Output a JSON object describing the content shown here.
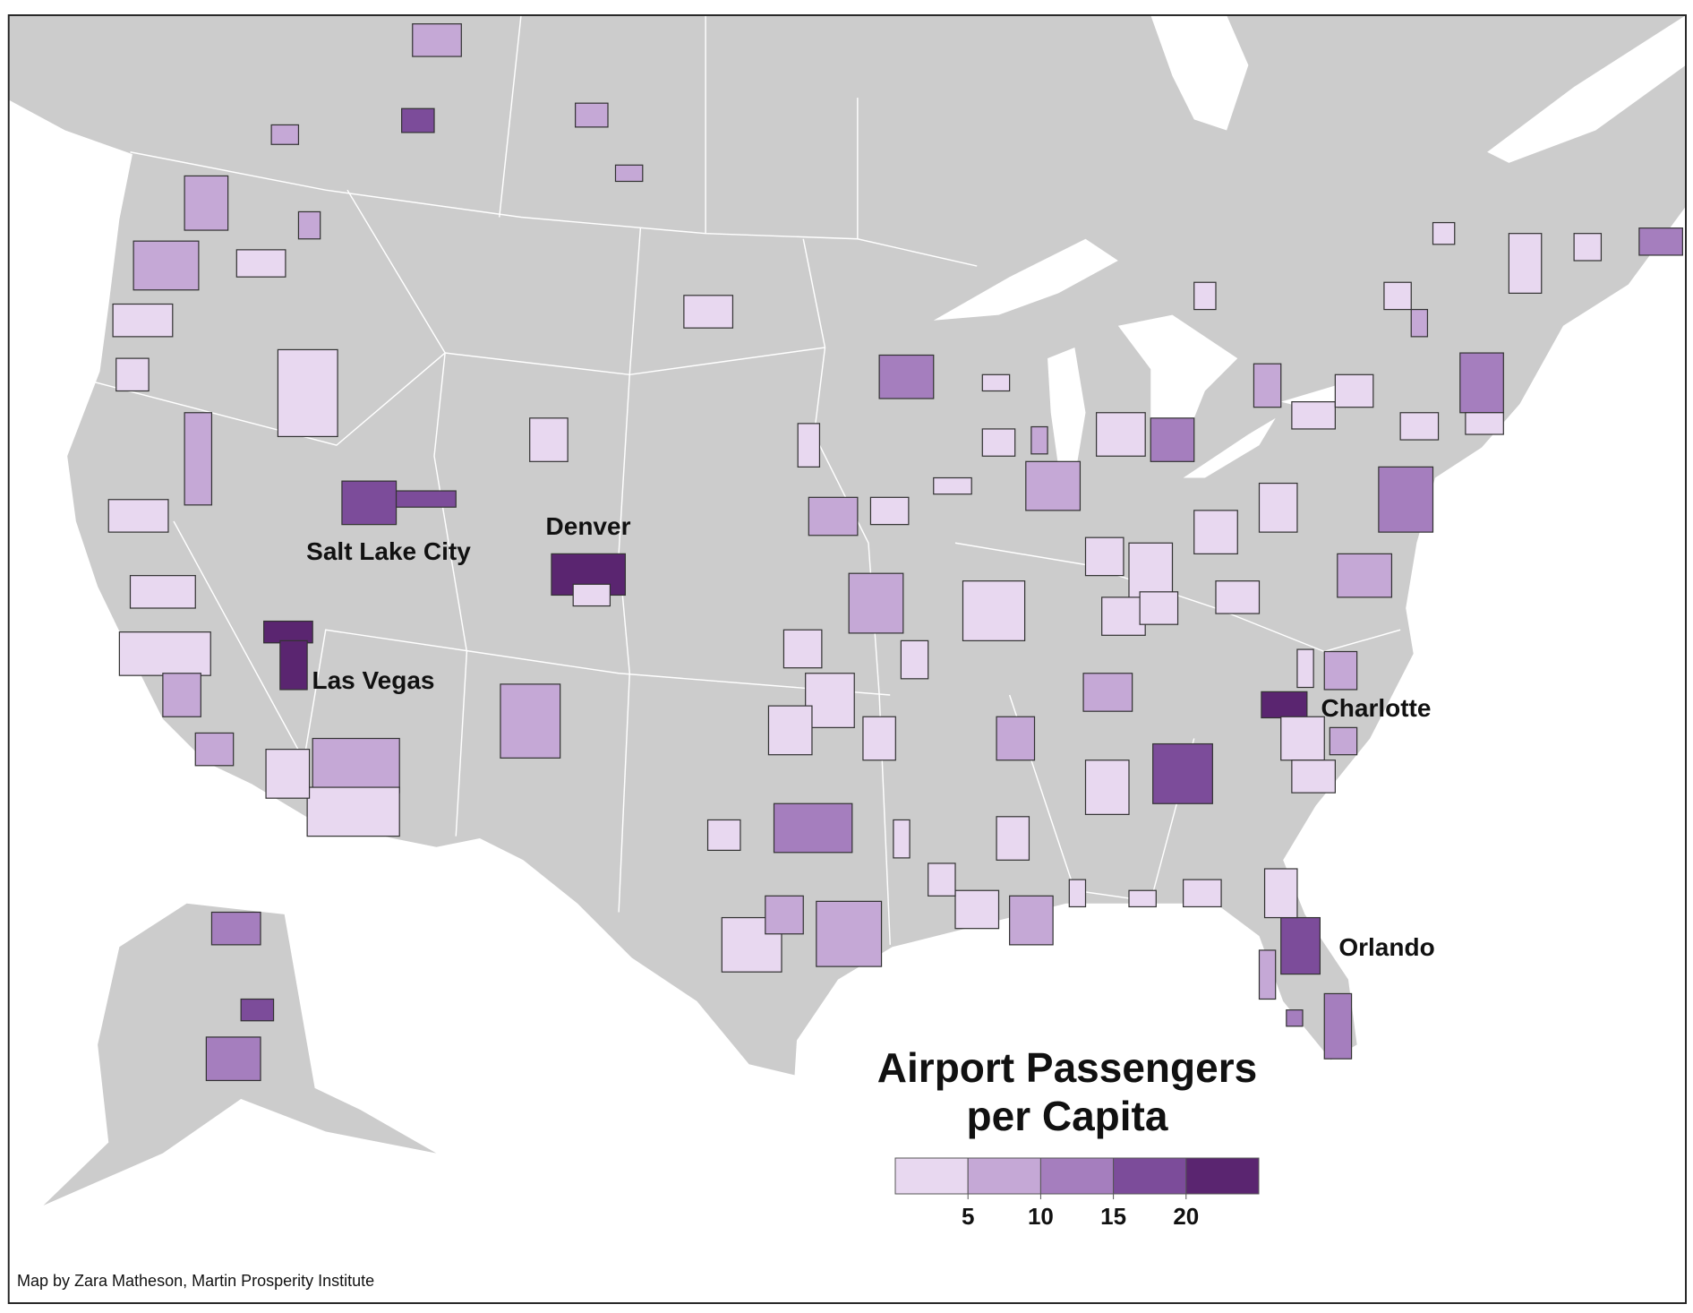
{
  "map": {
    "title_lines": [
      "Airport Passengers",
      "per Capita"
    ],
    "city_labels": [
      "Salt Lake City",
      "Denver",
      "Las Vegas",
      "Charlotte",
      "Orlando"
    ],
    "credit": "Map by Zara Matheson, Martin Prosperity Institute",
    "legend": {
      "colors": [
        "#e8d8f0",
        "#c5a8d6",
        "#a57ebe",
        "#7c4c9a",
        "#5a2570"
      ],
      "ticks": [
        5,
        10,
        15,
        20
      ]
    }
  }
}
